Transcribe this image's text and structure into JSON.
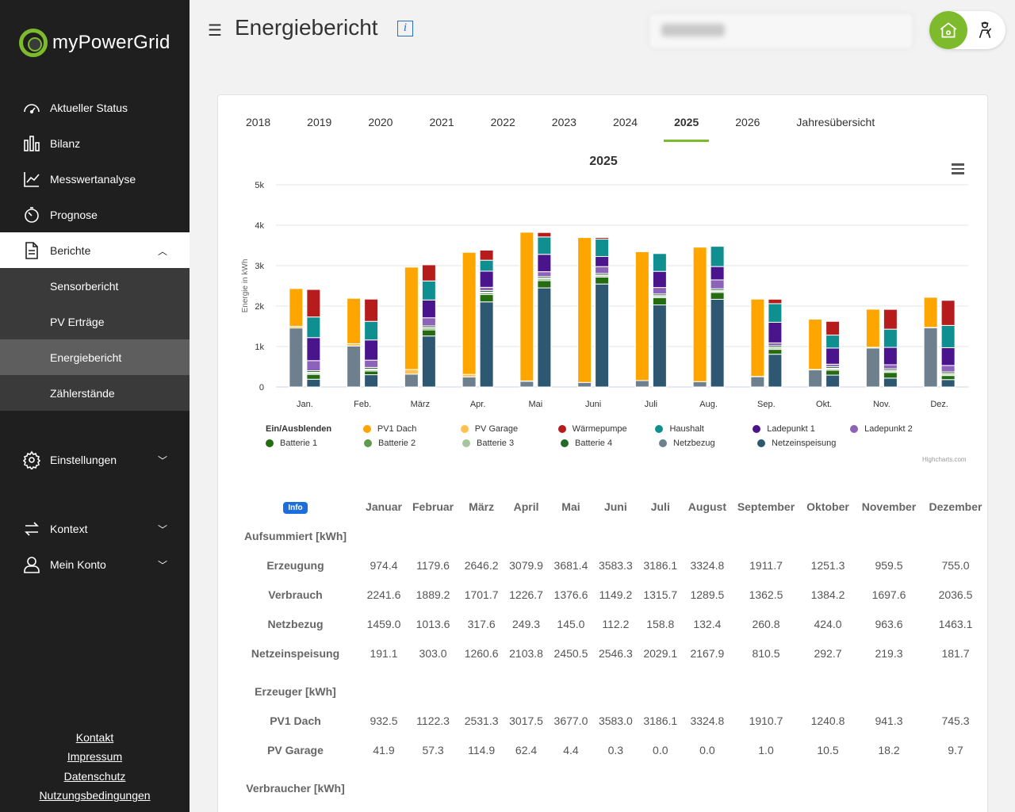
{
  "app": {
    "name": "myPowerGrid"
  },
  "sidebar": {
    "items": [
      {
        "label": "Aktueller Status",
        "icon": "gauge-icon"
      },
      {
        "label": "Bilanz",
        "icon": "bar-chart-icon"
      },
      {
        "label": "Messwertanalyse",
        "icon": "line-chart-icon"
      },
      {
        "label": "Prognose",
        "icon": "timer-icon"
      },
      {
        "label": "Berichte",
        "icon": "document-icon"
      }
    ],
    "sub_items": [
      "Sensorbericht",
      "PV Erträge",
      "Energiebericht",
      "Zählerstände"
    ],
    "settings": "Einstellungen",
    "context": "Kontext",
    "account": "Mein Konto",
    "footer": [
      "Kontakt",
      "Impressum",
      "Datenschutz",
      "Nutzungsbedingungen"
    ]
  },
  "header": {
    "title": "Energiebericht",
    "info_glyph": "i"
  },
  "tabs": [
    "2018",
    "2019",
    "2020",
    "2021",
    "2022",
    "2023",
    "2024",
    "2025",
    "2026",
    "Jahresübersicht"
  ],
  "active_tab": "2025",
  "chart_data": {
    "type": "bar",
    "title": "2025",
    "ylabel": "Energie in kWh",
    "ylim": [
      0,
      5000
    ],
    "yticks": [
      "0",
      "1k",
      "2k",
      "3k",
      "4k",
      "5k"
    ],
    "categories": [
      "Jan.",
      "Feb.",
      "März",
      "Apr.",
      "Mai",
      "Juni",
      "Juli",
      "Aug.",
      "Sep.",
      "Okt.",
      "Nov.",
      "Dez."
    ],
    "stacks": {
      "left": [
        {
          "name": "Netzbezug",
          "color": "#6e7f8d",
          "values": [
            1459,
            1014,
            318,
            249,
            145,
            112,
            159,
            132,
            261,
            424,
            964,
            1463
          ]
        },
        {
          "name": "PV Garage",
          "color": "#ffc14d",
          "values": [
            42,
            57,
            115,
            62,
            4,
            0,
            0,
            0,
            1,
            10,
            18,
            10
          ]
        },
        {
          "name": "PV1 Dach",
          "color": "#ffa500",
          "values": [
            933,
            1122,
            2531,
            3018,
            3677,
            3583,
            3186,
            3325,
            1911,
            1241,
            941,
            745
          ]
        }
      ],
      "right": [
        {
          "name": "Netzeinspeisung",
          "color": "#2e5772",
          "values": [
            191,
            303,
            1261,
            2104,
            2450,
            2546,
            2029,
            2168,
            810,
            293,
            219,
            182
          ]
        },
        {
          "name": "Batterie 1",
          "color": "#246b12",
          "values": [
            120,
            90,
            150,
            180,
            180,
            170,
            180,
            170,
            120,
            120,
            140,
            100
          ]
        },
        {
          "name": "Batterie 2",
          "color": "#5f9b4c",
          "values": [
            30,
            30,
            40,
            40,
            40,
            30,
            30,
            30,
            30,
            30,
            30,
            30
          ]
        },
        {
          "name": "Batterie 3",
          "color": "#a8c69d",
          "values": [
            20,
            20,
            20,
            20,
            20,
            20,
            20,
            20,
            20,
            20,
            20,
            20
          ]
        },
        {
          "name": "Batterie 4",
          "color": "#236b25",
          "values": [
            40,
            40,
            40,
            40,
            40,
            40,
            40,
            40,
            40,
            40,
            40,
            40
          ]
        },
        {
          "name": "Ladepunkt 2",
          "color": "#8c63b8",
          "values": [
            250,
            180,
            200,
            80,
            120,
            170,
            160,
            220,
            70,
            60,
            100,
            160
          ]
        },
        {
          "name": "Ladepunkt 1",
          "color": "#4a148c",
          "values": [
            570,
            500,
            440,
            400,
            430,
            250,
            400,
            330,
            510,
            400,
            430,
            440
          ]
        },
        {
          "name": "Haushalt",
          "color": "#0f8f8f",
          "values": [
            510,
            460,
            470,
            270,
            430,
            430,
            440,
            500,
            460,
            320,
            450,
            550
          ]
        },
        {
          "name": "Wärmepumpe",
          "color": "#b71c1c",
          "values": [
            680,
            550,
            400,
            250,
            110,
            40,
            0,
            0,
            110,
            340,
            490,
            620
          ]
        }
      ]
    }
  },
  "legend": {
    "header": "Ein/Ausblenden",
    "items": [
      {
        "name": "PV1 Dach",
        "color": "#ffa500"
      },
      {
        "name": "PV Garage",
        "color": "#ffc14d"
      },
      {
        "name": "Wärmepumpe",
        "color": "#b71c1c"
      },
      {
        "name": "Haushalt",
        "color": "#0f8f8f"
      },
      {
        "name": "Ladepunkt 1",
        "color": "#4a148c"
      },
      {
        "name": "Ladepunkt 2",
        "color": "#8c63b8"
      },
      {
        "name": "Batterie 1",
        "color": "#246b12"
      },
      {
        "name": "Batterie 2",
        "color": "#5f9b4c"
      },
      {
        "name": "Batterie 3",
        "color": "#a8c69d"
      },
      {
        "name": "Batterie 4",
        "color": "#236b25"
      },
      {
        "name": "Netzbezug",
        "color": "#6e7f8d"
      },
      {
        "name": "Netzeinspeisung",
        "color": "#2e5772"
      }
    ],
    "credits": "Highcharts.com"
  },
  "table": {
    "info_label": "Info",
    "months": [
      "Januar",
      "Februar",
      "März",
      "April",
      "Mai",
      "Juni",
      "Juli",
      "August",
      "September",
      "Oktober",
      "November",
      "Dezember"
    ],
    "sections": [
      {
        "title": "Aufsummiert [kWh]",
        "rows": [
          {
            "label": "Erzeugung",
            "values": [
              "974.4",
              "1179.6",
              "2646.2",
              "3079.9",
              "3681.4",
              "3583.3",
              "3186.1",
              "3324.8",
              "1911.7",
              "1251.3",
              "959.5",
              "755.0"
            ]
          },
          {
            "label": "Verbrauch",
            "values": [
              "2241.6",
              "1889.2",
              "1701.7",
              "1226.7",
              "1376.6",
              "1149.2",
              "1315.7",
              "1289.5",
              "1362.5",
              "1384.2",
              "1697.6",
              "2036.5"
            ]
          },
          {
            "label": "Netzbezug",
            "values": [
              "1459.0",
              "1013.6",
              "317.6",
              "249.3",
              "145.0",
              "112.2",
              "158.8",
              "132.4",
              "260.8",
              "424.0",
              "963.6",
              "1463.1"
            ]
          },
          {
            "label": "Netzeinspeisung",
            "values": [
              "191.1",
              "303.0",
              "1260.6",
              "2103.8",
              "2450.5",
              "2546.3",
              "2029.1",
              "2167.9",
              "810.5",
              "292.7",
              "219.3",
              "181.7"
            ]
          }
        ]
      },
      {
        "title": "Erzeuger [kWh]",
        "rows": [
          {
            "label": "PV1 Dach",
            "values": [
              "932.5",
              "1122.3",
              "2531.3",
              "3017.5",
              "3677.0",
              "3583.0",
              "3186.1",
              "3324.8",
              "1910.7",
              "1240.8",
              "941.3",
              "745.3"
            ]
          },
          {
            "label": "PV Garage",
            "values": [
              "41.9",
              "57.3",
              "114.9",
              "62.4",
              "4.4",
              "0.3",
              "0.0",
              "0.0",
              "1.0",
              "10.5",
              "18.2",
              "9.7"
            ]
          }
        ]
      },
      {
        "title": "Verbraucher [kWh]",
        "rows": []
      }
    ]
  }
}
